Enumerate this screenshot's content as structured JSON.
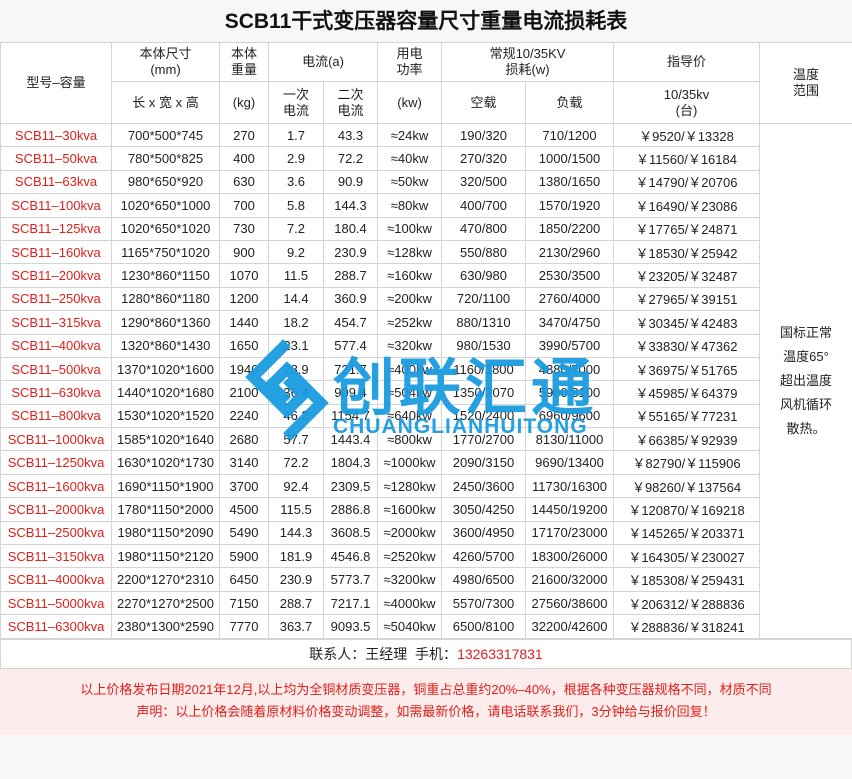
{
  "title": "SCB11干式变压器容量尺寸重量电流损耗表",
  "header": {
    "model": "型号–容量",
    "size": "本体尺寸\n(mm)",
    "size_sub": "长 x 宽 x 高",
    "weight": "本体\n重量",
    "weight_sub": "(kg)",
    "current": "电流(a)",
    "primary": "一次\n电流",
    "secondary": "二次\n电流",
    "power": "用电\n功率",
    "power_sub": "(kw)",
    "loss": "常规10/35KV\n损耗(w)",
    "noload": "空载",
    "load": "负载",
    "price": "指导价",
    "price_sub": "10/35kv\n(台)",
    "temp": "温度\n范围"
  },
  "rows": [
    [
      "SCB11–30kva",
      "700*500*745",
      "270",
      "1.7",
      "43.3",
      "≈24kw",
      "190/320",
      "710/1200",
      "￥9520/￥13328"
    ],
    [
      "SCB11–50kva",
      "780*500*825",
      "400",
      "2.9",
      "72.2",
      "≈40kw",
      "270/320",
      "1000/1500",
      "￥11560/￥16184"
    ],
    [
      "SCB11–63kva",
      "980*650*920",
      "630",
      "3.6",
      "90.9",
      "≈50kw",
      "320/500",
      "1380/1650",
      "￥14790/￥20706"
    ],
    [
      "SCB11–100kva",
      "1020*650*1000",
      "700",
      "5.8",
      "144.3",
      "≈80kw",
      "400/700",
      "1570/1920",
      "￥16490/￥23086"
    ],
    [
      "SCB11–125kva",
      "1020*650*1020",
      "730",
      "7.2",
      "180.4",
      "≈100kw",
      "470/800",
      "1850/2200",
      "￥17765/￥24871"
    ],
    [
      "SCB11–160kva",
      "1165*750*1020",
      "900",
      "9.2",
      "230.9",
      "≈128kw",
      "550/880",
      "2130/2960",
      "￥18530/￥25942"
    ],
    [
      "SCB11–200kva",
      "1230*860*1150",
      "1070",
      "11.5",
      "288.7",
      "≈160kw",
      "630/980",
      "2530/3500",
      "￥23205/￥32487"
    ],
    [
      "SCB11–250kva",
      "1280*860*1180",
      "1200",
      "14.4",
      "360.9",
      "≈200kw",
      "720/1100",
      "2760/4000",
      "￥27965/￥39151"
    ],
    [
      "SCB11–315kva",
      "1290*860*1360",
      "1440",
      "18.2",
      "454.7",
      "≈252kw",
      "880/1310",
      "3470/4750",
      "￥30345/￥42483"
    ],
    [
      "SCB11–400kva",
      "1320*860*1430",
      "1650",
      "23.1",
      "577.4",
      "≈320kw",
      "980/1530",
      "3990/5700",
      "￥33830/￥47362"
    ],
    [
      "SCB11–500kva",
      "1370*1020*1600",
      "1940",
      "28.9",
      "721.7",
      "≈400kw",
      "1160/1800",
      "4880/7000",
      "￥36975/￥51765"
    ],
    [
      "SCB11–630kva",
      "1440*1020*1680",
      "2100",
      "36.4",
      "909.4",
      "≈504kw",
      "1350/2070",
      "5960/8100",
      "￥45985/￥64379"
    ],
    [
      "SCB11–800kva",
      "1530*1020*1520",
      "2240",
      "46.2",
      "1154.7",
      "≈640kw",
      "1520/2400",
      "6960/9600",
      "￥55165/￥77231"
    ],
    [
      "SCB11–1000kva",
      "1585*1020*1640",
      "2680",
      "57.7",
      "1443.4",
      "≈800kw",
      "1770/2700",
      "8130/11000",
      "￥66385/￥92939"
    ],
    [
      "SCB11–1250kva",
      "1630*1020*1730",
      "3140",
      "72.2",
      "1804.3",
      "≈1000kw",
      "2090/3150",
      "9690/13400",
      "￥82790/￥115906"
    ],
    [
      "SCB11–1600kva",
      "1690*1150*1900",
      "3700",
      "92.4",
      "2309.5",
      "≈1280kw",
      "2450/3600",
      "11730/16300",
      "￥98260/￥137564"
    ],
    [
      "SCB11–2000kva",
      "1780*1150*2000",
      "4500",
      "115.5",
      "2886.8",
      "≈1600kw",
      "3050/4250",
      "14450/19200",
      "￥120870/￥169218"
    ],
    [
      "SCB11–2500kva",
      "1980*1150*2090",
      "5490",
      "144.3",
      "3608.5",
      "≈2000kw",
      "3600/4950",
      "17170/23000",
      "￥145265/￥203371"
    ],
    [
      "SCB11–3150kva",
      "1980*1150*2120",
      "5900",
      "181.9",
      "4546.8",
      "≈2520kw",
      "4260/5700",
      "18300/26000",
      "￥164305/￥230027"
    ],
    [
      "SCB11–4000kva",
      "2200*1270*2310",
      "6450",
      "230.9",
      "5773.7",
      "≈3200kw",
      "4980/6500",
      "21600/32000",
      "￥185308/￥259431"
    ],
    [
      "SCB11–5000kva",
      "2270*1270*2500",
      "7150",
      "288.7",
      "7217.1",
      "≈4000kw",
      "5570/7300",
      "27560/38600",
      "￥206312/￥288836"
    ],
    [
      "SCB11–6300kva",
      "2380*1300*2590",
      "7770",
      "363.7",
      "9093.5",
      "≈5040kw",
      "6500/8100",
      "32200/42600",
      "￥288836/￥318241"
    ]
  ],
  "temp_note": "国标正常\n温度65°\n超出温度\n风机循环\n散热。",
  "contact": {
    "label": "联系人：王经理  手机：",
    "phone": "13263317831"
  },
  "notes": [
    "以上价格发布日期2021年12月,以上均为全铜材质变压器，铜重占总重约20%–40%，根据各种变压器规格不同，材质不同",
    "声明：以上价格会随着原材料价格变动调整，如需最新价格，请电话联系我们，3分钟给与报价回复！"
  ],
  "watermark": {
    "text": "创联汇通",
    "sub": "CHUANGLIANHUITONG",
    "color": "#1a9be0"
  }
}
